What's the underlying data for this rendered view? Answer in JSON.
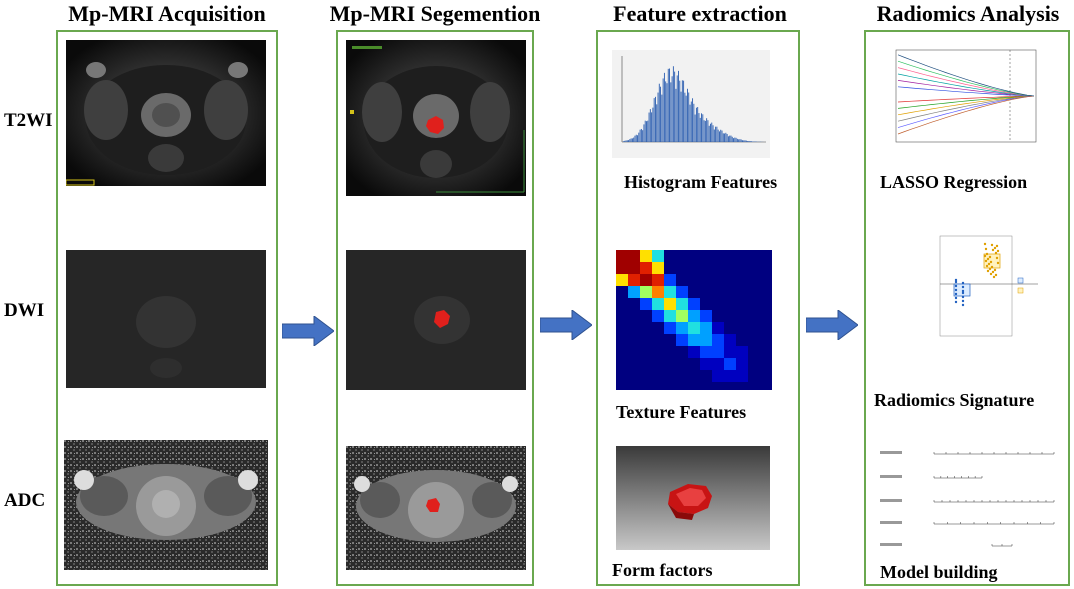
{
  "headers": {
    "acquisition": "Mp-MRI Acquisition",
    "segmentation": "Mp-MRI Segemention",
    "extraction": "Feature  extraction",
    "analysis": "Radiomics Analysis"
  },
  "row_labels": {
    "t2wi": "T2WI",
    "dwi": "DWI",
    "adc": "ADC"
  },
  "captions": {
    "histogram": "Histogram Features",
    "texture": "Texture  Features",
    "form": "Form factors",
    "lasso": "LASSO Regression",
    "signature": "Radiomics Signature",
    "model": "Model building"
  },
  "colors": {
    "panel_border": "#6aa84f",
    "arrow_fill": "#4472c4",
    "roi": "#e0201c"
  }
}
